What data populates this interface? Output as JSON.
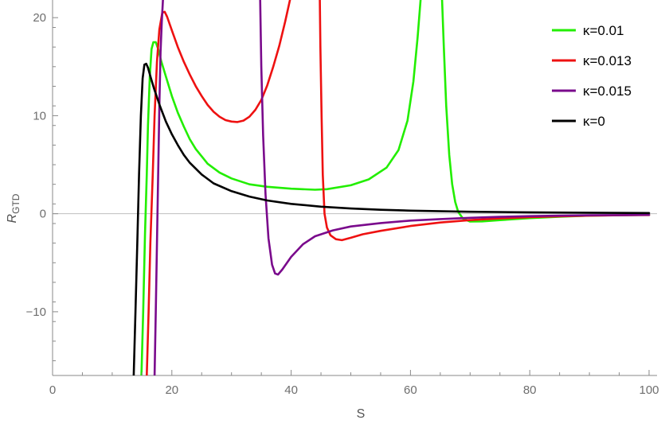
{
  "chart_data": {
    "type": "line",
    "xlabel": "S",
    "ylabel_main": "R",
    "ylabel_sub": "GTD",
    "xlim": [
      0,
      100
    ],
    "ylim": [
      -16.5,
      21.8
    ],
    "x_ticks": [
      0,
      20,
      40,
      60,
      80,
      100
    ],
    "x_tick_labels": [
      "0",
      "20",
      "40",
      "60",
      "80",
      "100"
    ],
    "y_ticks": [
      -10,
      0,
      10,
      20
    ],
    "y_tick_labels": [
      "−10",
      "0",
      "10",
      "20"
    ],
    "grid": false,
    "legend_position": "top-right",
    "series": [
      {
        "name": "κ=0.01",
        "color": "#22ee00",
        "segments": [
          [
            [
              14.9,
              -16.5
            ],
            [
              15.2,
              -10
            ],
            [
              15.5,
              -2
            ],
            [
              15.8,
              4
            ],
            [
              16.0,
              9
            ],
            [
              16.3,
              14
            ],
            [
              16.6,
              16.8
            ],
            [
              16.9,
              17.5
            ],
            [
              17.3,
              17.5
            ],
            [
              17.7,
              16.8
            ],
            [
              18.2,
              15.6
            ],
            [
              19,
              14.0
            ],
            [
              20,
              12.0
            ],
            [
              21,
              10.3
            ],
            [
              22,
              8.9
            ],
            [
              23,
              7.6
            ],
            [
              24,
              6.6
            ],
            [
              26,
              5.1
            ],
            [
              28,
              4.2
            ],
            [
              30,
              3.6
            ],
            [
              33,
              3.0
            ],
            [
              36,
              2.75
            ],
            [
              40,
              2.55
            ],
            [
              44,
              2.45
            ],
            [
              46,
              2.5
            ],
            [
              50,
              2.9
            ],
            [
              53,
              3.5
            ],
            [
              56,
              4.7
            ],
            [
              58,
              6.5
            ],
            [
              59.5,
              9.5
            ],
            [
              60.5,
              13.5
            ],
            [
              61.2,
              18
            ],
            [
              61.7,
              21.8
            ]
          ],
          [
            [
              65.3,
              21.8
            ],
            [
              65.6,
              17
            ],
            [
              66,
              11
            ],
            [
              66.5,
              6
            ],
            [
              67,
              3
            ],
            [
              67.5,
              1.2
            ],
            [
              68,
              0.2
            ],
            [
              68.8,
              -0.5
            ],
            [
              70,
              -0.8
            ],
            [
              72,
              -0.78
            ],
            [
              75,
              -0.65
            ],
            [
              80,
              -0.45
            ],
            [
              85,
              -0.3
            ],
            [
              90,
              -0.2
            ],
            [
              95,
              -0.15
            ],
            [
              100,
              -0.12
            ]
          ]
        ]
      },
      {
        "name": "κ=0.013",
        "color": "#ee1111",
        "segments": [
          [
            [
              15.8,
              -16.5
            ],
            [
              16.1,
              -10
            ],
            [
              16.4,
              -3
            ],
            [
              16.8,
              4
            ],
            [
              17.1,
              10
            ],
            [
              17.5,
              15.5
            ],
            [
              17.9,
              18.8
            ],
            [
              18.4,
              20.5
            ],
            [
              18.8,
              20.6
            ],
            [
              19.2,
              20.1
            ],
            [
              20,
              18.7
            ],
            [
              21,
              17
            ],
            [
              22,
              15.5
            ],
            [
              23,
              14.2
            ],
            [
              24,
              13.0
            ],
            [
              25,
              12.0
            ],
            [
              26,
              11.1
            ],
            [
              27,
              10.4
            ],
            [
              28,
              9.9
            ],
            [
              29,
              9.55
            ],
            [
              30,
              9.4
            ],
            [
              31,
              9.35
            ],
            [
              32,
              9.5
            ],
            [
              33,
              9.9
            ],
            [
              34,
              10.6
            ],
            [
              35,
              11.6
            ],
            [
              36,
              13.1
            ],
            [
              37,
              15
            ],
            [
              38,
              17.1
            ],
            [
              39,
              19.6
            ],
            [
              39.8,
              21.8
            ]
          ],
          [
            [
              44.8,
              21.8
            ],
            [
              44.9,
              17
            ],
            [
              45.1,
              10
            ],
            [
              45.3,
              4
            ],
            [
              45.6,
              0
            ],
            [
              46,
              -1.4
            ],
            [
              46.6,
              -2.2
            ],
            [
              47.5,
              -2.6
            ],
            [
              48.5,
              -2.7
            ],
            [
              50,
              -2.45
            ],
            [
              52,
              -2.1
            ],
            [
              55,
              -1.75
            ],
            [
              60,
              -1.25
            ],
            [
              65,
              -0.9
            ],
            [
              70,
              -0.65
            ],
            [
              75,
              -0.48
            ],
            [
              80,
              -0.35
            ],
            [
              85,
              -0.26
            ],
            [
              90,
              -0.2
            ],
            [
              95,
              -0.16
            ],
            [
              100,
              -0.13
            ]
          ]
        ]
      },
      {
        "name": "κ=0.015",
        "color": "#7a0a8c",
        "segments": [
          [
            [
              17.1,
              -16.5
            ],
            [
              17.3,
              -10
            ],
            [
              17.5,
              -3
            ],
            [
              17.7,
              4
            ],
            [
              17.9,
              11
            ],
            [
              18.1,
              16.5
            ],
            [
              18.3,
              19.5
            ],
            [
              18.5,
              21.8
            ]
          ],
          [
            [
              34.8,
              21.8
            ],
            [
              35.0,
              15
            ],
            [
              35.3,
              8
            ],
            [
              35.7,
              2
            ],
            [
              36.2,
              -2.5
            ],
            [
              36.8,
              -5.2
            ],
            [
              37.3,
              -6.1
            ],
            [
              37.8,
              -6.2
            ],
            [
              38.5,
              -5.7
            ],
            [
              40,
              -4.4
            ],
            [
              42,
              -3.1
            ],
            [
              44,
              -2.3
            ],
            [
              47,
              -1.7
            ],
            [
              50,
              -1.3
            ],
            [
              55,
              -0.95
            ],
            [
              60,
              -0.7
            ],
            [
              65,
              -0.55
            ],
            [
              70,
              -0.42
            ],
            [
              75,
              -0.32
            ],
            [
              80,
              -0.25
            ],
            [
              85,
              -0.2
            ],
            [
              90,
              -0.16
            ],
            [
              95,
              -0.14
            ],
            [
              100,
              -0.12
            ]
          ]
        ]
      },
      {
        "name": "κ=0",
        "color": "#000000",
        "segments": [
          [
            [
              13.6,
              -16.5
            ],
            [
              13.9,
              -10
            ],
            [
              14.2,
              -3
            ],
            [
              14.5,
              4
            ],
            [
              14.8,
              10
            ],
            [
              15.1,
              13.8
            ],
            [
              15.4,
              15.2
            ],
            [
              15.7,
              15.3
            ],
            [
              16.0,
              14.9
            ],
            [
              16.5,
              13.8
            ],
            [
              17,
              12.8
            ],
            [
              18,
              11.0
            ],
            [
              19,
              9.4
            ],
            [
              20,
              8.1
            ],
            [
              21,
              7.0
            ],
            [
              22,
              6.0
            ],
            [
              23,
              5.2
            ],
            [
              25,
              4.0
            ],
            [
              27,
              3.1
            ],
            [
              30,
              2.3
            ],
            [
              33,
              1.75
            ],
            [
              36,
              1.35
            ],
            [
              40,
              1.0
            ],
            [
              45,
              0.72
            ],
            [
              50,
              0.53
            ],
            [
              55,
              0.4
            ],
            [
              60,
              0.31
            ],
            [
              70,
              0.2
            ],
            [
              80,
              0.14
            ],
            [
              90,
              0.1
            ],
            [
              100,
              0.07
            ]
          ]
        ]
      }
    ]
  }
}
